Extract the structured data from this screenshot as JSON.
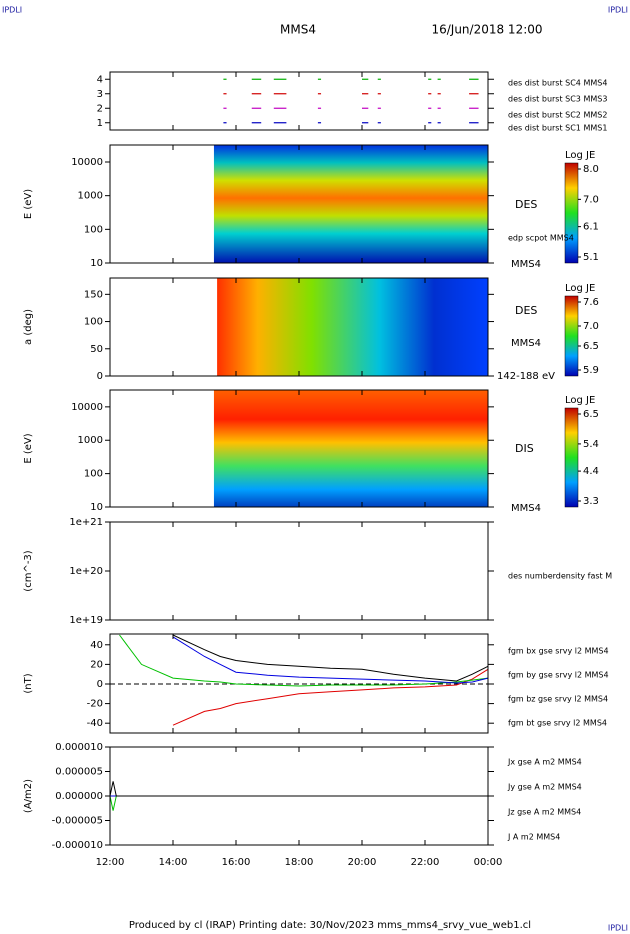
{
  "header": {
    "logo_left": "IPDLI",
    "title": "MMS4",
    "date": "16/Jun/2018 12:00",
    "logo_right": "IPDLI"
  },
  "footer": {
    "text": "Produced by cl (IRAP)   Printing date: 30/Nov/2023   mms_mms4_srvy_vue_web1.cl",
    "logo": "IPDLI"
  },
  "x_axis": {
    "xlim": [
      12,
      24
    ],
    "xticks": [
      {
        "value": 12,
        "label": "12:00"
      },
      {
        "value": 14,
        "label": "14:00"
      },
      {
        "value": 16,
        "label": "16:00"
      },
      {
        "value": 18,
        "label": "18:00"
      },
      {
        "value": 20,
        "label": "20:00"
      },
      {
        "value": 22,
        "label": "22:00"
      },
      {
        "value": 24,
        "label": "00:00"
      }
    ]
  },
  "chart_data": [
    {
      "type": "burst",
      "ylim": [
        0.5,
        4.5
      ],
      "yticks": [
        1,
        2,
        3,
        4
      ],
      "series": [
        {
          "name": "des dist burst SC1 MMS1",
          "color": "#0000c0",
          "level": 1
        },
        {
          "name": "des dist burst SC2 MMS2",
          "color": "#c000c0",
          "level": 2
        },
        {
          "name": "des dist burst SC3 MMS3",
          "color": "#d00000",
          "level": 3
        },
        {
          "name": "des dist burst SC4 MMS4",
          "color": "#00b000",
          "level": 4
        }
      ],
      "intervals": [
        [
          15.6,
          15.7
        ],
        [
          16.5,
          16.8
        ],
        [
          17.2,
          17.6
        ],
        [
          18.6,
          18.7
        ],
        [
          20.0,
          20.2
        ],
        [
          20.5,
          20.6
        ],
        [
          22.1,
          22.2
        ],
        [
          22.4,
          22.5
        ],
        [
          23.4,
          23.7
        ]
      ]
    },
    {
      "type": "spectrogram",
      "ylabel": "E (eV)",
      "log": true,
      "ylim": [
        10,
        32000
      ],
      "yticks": [
        10,
        100,
        1000,
        10000
      ],
      "start": 15.3,
      "gradient": "gE1",
      "colorbar_title": "Log JE",
      "cticks": [
        {
          "value": 8,
          "label": "8.0"
        },
        {
          "value": 7,
          "label": "7.0"
        },
        6.1,
        5.1
      ],
      "notes": [
        "DES",
        "edp scpot MMS4",
        "MMS4"
      ]
    },
    {
      "type": "spectrogram",
      "ylabel": "a (deg)",
      "log": false,
      "ylim": [
        0,
        180
      ],
      "yticks": [
        0,
        50,
        100,
        150
      ],
      "start": 15.4,
      "gradient": "gA",
      "colorbar_title": "Log JE",
      "cticks": [
        7.6,
        {
          "value": 7,
          "label": "7.0"
        },
        6.5,
        5.9
      ],
      "notes": [
        "DES",
        "MMS4",
        "142-188 eV"
      ]
    },
    {
      "type": "spectrogram",
      "ylabel": "E (eV)",
      "log": true,
      "ylim": [
        10,
        32000
      ],
      "yticks": [
        10,
        100,
        1000,
        10000
      ],
      "start": 15.3,
      "gradient": "gE2",
      "colorbar_title": "Log JE",
      "cticks": [
        6.5,
        5.4,
        4.4,
        3.3
      ],
      "notes": [
        "DIS",
        "MMS4"
      ]
    },
    {
      "type": "line",
      "ylabel": "(cm^-3)",
      "log": true,
      "ylim": [
        1e+19,
        1e+21
      ],
      "yticks": [
        {
          "value": 1e+19,
          "label": "1e+19"
        },
        {
          "value": 1e+20,
          "label": "1e+20"
        },
        {
          "value": 1e+21,
          "label": "1e+21"
        }
      ],
      "notes": [
        "des numberdensity fast M"
      ]
    },
    {
      "type": "line",
      "ylabel": "(nT)",
      "log": false,
      "ylim": [
        -50,
        51
      ],
      "yticks": [
        -40,
        -20,
        0,
        20,
        40
      ],
      "zero_line": true,
      "x": [
        12.3,
        13,
        14,
        15,
        15.5,
        16,
        17,
        18,
        19,
        20,
        21,
        22,
        23,
        23.5,
        24
      ],
      "series": [
        {
          "name": "fgm bx gse srvy l2 MMS4",
          "color": "#e00000",
          "values": [
            null,
            null,
            -42,
            -28,
            -25,
            -20,
            -15,
            -10,
            -8,
            -6,
            -4,
            -3,
            -1,
            5,
            15
          ]
        },
        {
          "name": "fgm by gse srvy l2 MMS4",
          "color": "#00c000",
          "values": [
            50,
            20,
            6,
            3,
            2,
            0,
            -1,
            -2,
            -1,
            -1,
            -1,
            0,
            2,
            4,
            6
          ]
        },
        {
          "name": "fgm bz gse srvy l2 MMS4",
          "color": "#0000e0",
          "values": [
            null,
            null,
            48,
            28,
            20,
            12,
            9,
            7,
            6,
            5,
            4,
            3,
            1,
            2,
            6
          ]
        },
        {
          "name": "fgm bt gse srvy l2 MMS4",
          "color": "#000000",
          "values": [
            null,
            null,
            50,
            35,
            28,
            24,
            20,
            18,
            16,
            15,
            10,
            6,
            3,
            10,
            18
          ]
        }
      ]
    },
    {
      "type": "line",
      "ylabel": "(A/m2)",
      "log": false,
      "ylim": [
        -1e-05,
        1e-05
      ],
      "yticks": [
        {
          "value": -1e-05,
          "label": "-0.000010"
        },
        {
          "value": -5e-06,
          "label": "-0.000005"
        },
        {
          "value": 0,
          "label": "0.000000"
        },
        {
          "value": 5e-06,
          "label": "0.000005"
        },
        {
          "value": 1e-05,
          "label": "0.000010"
        }
      ],
      "x": [
        12,
        12.1,
        12.2,
        24
      ],
      "series": [
        {
          "name": "Jx gse A m2 MMS4",
          "color": "#e00000",
          "values": [
            0,
            0,
            0,
            0
          ]
        },
        {
          "name": "Jy gse A m2 MMS4",
          "color": "#00c000",
          "values": [
            0,
            -3e-06,
            0,
            0
          ]
        },
        {
          "name": "Jz gse A m2 MMS4",
          "color": "#0000e0",
          "values": [
            0,
            0,
            0,
            0
          ]
        },
        {
          "name": "J A m2 MMS4",
          "color": "#000000",
          "values": [
            0,
            3e-06,
            0,
            0
          ]
        }
      ]
    }
  ]
}
